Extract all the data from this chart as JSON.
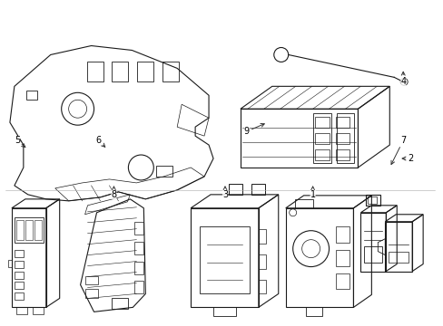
{
  "background_color": "#ffffff",
  "line_color": "#1a1a1a",
  "fig_width": 4.89,
  "fig_height": 3.6,
  "dpi": 100,
  "border_color": "#cccccc"
}
